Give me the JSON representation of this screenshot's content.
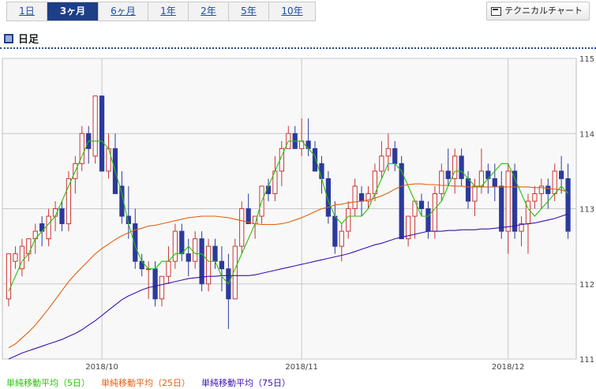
{
  "tabs": [
    {
      "label": "1日",
      "active": false
    },
    {
      "label": "3ヶ月",
      "active": true
    },
    {
      "label": "6ヶ月",
      "active": false
    },
    {
      "label": "1年",
      "active": false
    },
    {
      "label": "2年",
      "active": false
    },
    {
      "label": "5年",
      "active": false
    },
    {
      "label": "10年",
      "active": false
    }
  ],
  "technical_button": {
    "label": "テクニカルチャート",
    "icon": "chart-window-icon"
  },
  "section_title": "日足",
  "legend": [
    {
      "label": "単純移動平均（5日）",
      "color": "#2ac00a"
    },
    {
      "label": "単純移動平均（25日）",
      "color": "#e06010"
    },
    {
      "label": "単純移動平均（75日）",
      "color": "#3a10b0"
    }
  ],
  "colors": {
    "up": "#cc3333",
    "down": "#2c3a9c",
    "grid": "#c8c8c8",
    "plot_bg": "#f8f8f8"
  },
  "chart_data": {
    "type": "candlestick",
    "ylim": [
      111,
      115
    ],
    "yticks": [
      111,
      112,
      113,
      114,
      115
    ],
    "xticks": [
      {
        "label": "2018/10",
        "index": 14
      },
      {
        "label": "2018/11",
        "index": 44
      },
      {
        "label": "2018/12",
        "index": 75
      }
    ],
    "candles": [
      [
        111.8,
        112.4,
        111.7,
        112.4
      ],
      [
        112.3,
        112.5,
        112.2,
        112.4
      ],
      [
        112.2,
        112.6,
        112.1,
        112.5
      ],
      [
        112.4,
        112.6,
        112.3,
        112.6
      ],
      [
        112.6,
        112.8,
        112.4,
        112.7
      ],
      [
        112.8,
        112.9,
        112.5,
        112.7
      ],
      [
        112.6,
        113.0,
        112.5,
        112.9
      ],
      [
        112.9,
        113.1,
        112.7,
        113.0
      ],
      [
        113.0,
        113.1,
        112.7,
        112.8
      ],
      [
        112.8,
        113.5,
        112.7,
        113.4
      ],
      [
        113.4,
        113.7,
        113.2,
        113.6
      ],
      [
        113.6,
        114.1,
        113.5,
        114.0
      ],
      [
        114.0,
        114.1,
        113.6,
        113.8
      ],
      [
        113.7,
        114.5,
        113.6,
        114.5
      ],
      [
        114.5,
        114.5,
        113.5,
        113.5
      ],
      [
        113.5,
        114.0,
        113.4,
        113.8
      ],
      [
        113.8,
        114.0,
        113.2,
        113.2
      ],
      [
        113.3,
        113.5,
        112.8,
        112.9
      ],
      [
        112.9,
        113.3,
        112.6,
        112.8
      ],
      [
        112.8,
        113.0,
        112.2,
        112.3
      ],
      [
        112.3,
        112.4,
        112.1,
        112.2
      ],
      [
        112.2,
        112.3,
        111.8,
        112.2
      ],
      [
        112.2,
        112.3,
        111.7,
        111.8
      ],
      [
        111.8,
        112.1,
        111.7,
        112.1
      ],
      [
        112.1,
        112.5,
        112.0,
        112.3
      ],
      [
        112.3,
        112.8,
        112.2,
        112.7
      ],
      [
        112.7,
        112.8,
        112.3,
        112.4
      ],
      [
        112.4,
        112.6,
        112.1,
        112.3
      ],
      [
        112.3,
        112.7,
        112.2,
        112.6
      ],
      [
        112.6,
        112.7,
        111.9,
        112.0
      ],
      [
        112.0,
        112.6,
        111.9,
        112.5
      ],
      [
        112.5,
        112.6,
        112.2,
        112.3
      ],
      [
        112.3,
        112.5,
        111.9,
        112.2
      ],
      [
        112.2,
        112.4,
        111.4,
        111.8
      ],
      [
        111.8,
        112.6,
        111.8,
        112.5
      ],
      [
        112.5,
        113.1,
        112.4,
        113.0
      ],
      [
        113.0,
        113.2,
        112.8,
        112.8
      ],
      [
        112.8,
        112.9,
        112.6,
        112.9
      ],
      [
        112.9,
        113.3,
        112.8,
        113.3
      ],
      [
        113.3,
        113.4,
        113.1,
        113.2
      ],
      [
        113.2,
        113.7,
        113.1,
        113.5
      ],
      [
        113.5,
        113.9,
        113.3,
        113.8
      ],
      [
        113.8,
        114.1,
        113.8,
        114.0
      ],
      [
        114.0,
        114.1,
        113.8,
        113.8
      ],
      [
        113.8,
        114.2,
        113.7,
        113.9
      ],
      [
        113.9,
        114.2,
        113.7,
        113.8
      ],
      [
        113.8,
        113.9,
        113.5,
        113.5
      ],
      [
        113.6,
        113.7,
        113.2,
        113.4
      ],
      [
        113.4,
        113.5,
        112.8,
        112.9
      ],
      [
        112.9,
        113.1,
        112.4,
        112.5
      ],
      [
        112.5,
        112.8,
        112.3,
        112.7
      ],
      [
        112.7,
        113.1,
        112.6,
        113.0
      ],
      [
        113.0,
        113.4,
        112.9,
        113.3
      ],
      [
        113.2,
        113.3,
        112.9,
        113.1
      ],
      [
        113.1,
        113.3,
        113.0,
        113.2
      ],
      [
        113.2,
        113.6,
        113.1,
        113.5
      ],
      [
        113.5,
        113.9,
        113.4,
        113.7
      ],
      [
        113.7,
        114.0,
        113.5,
        113.8
      ],
      [
        113.8,
        113.9,
        113.5,
        113.6
      ],
      [
        113.6,
        113.7,
        112.6,
        112.6
      ],
      [
        112.6,
        112.9,
        112.5,
        112.9
      ],
      [
        112.9,
        113.1,
        112.6,
        113.1
      ],
      [
        113.1,
        113.2,
        112.9,
        113.0
      ],
      [
        113.0,
        113.1,
        112.6,
        112.7
      ],
      [
        112.7,
        113.3,
        112.6,
        113.2
      ],
      [
        113.2,
        113.6,
        113.1,
        113.5
      ],
      [
        113.5,
        113.8,
        113.3,
        113.4
      ],
      [
        113.4,
        113.8,
        113.2,
        113.7
      ],
      [
        113.7,
        113.8,
        113.3,
        113.4
      ],
      [
        113.4,
        113.5,
        113.0,
        113.1
      ],
      [
        113.1,
        113.4,
        112.9,
        113.3
      ],
      [
        113.3,
        113.8,
        113.2,
        113.5
      ],
      [
        113.5,
        113.6,
        113.2,
        113.4
      ],
      [
        113.4,
        113.6,
        113.1,
        113.3
      ],
      [
        113.3,
        113.5,
        112.6,
        112.7
      ],
      [
        112.7,
        113.6,
        112.4,
        113.5
      ],
      [
        113.5,
        113.6,
        112.6,
        112.7
      ],
      [
        112.7,
        112.9,
        112.5,
        112.8
      ],
      [
        112.8,
        113.2,
        112.4,
        113.1
      ],
      [
        113.1,
        113.3,
        113.0,
        113.2
      ],
      [
        113.2,
        113.4,
        113.0,
        113.3
      ],
      [
        113.3,
        113.4,
        113.0,
        113.2
      ],
      [
        113.2,
        113.6,
        113.1,
        113.5
      ],
      [
        113.5,
        113.7,
        113.2,
        113.4
      ],
      [
        113.4,
        113.6,
        112.6,
        112.7
      ]
    ],
    "ma5": [
      111.9,
      112.1,
      112.3,
      112.4,
      112.6,
      112.7,
      112.8,
      112.9,
      113.1,
      113.3,
      113.5,
      113.7,
      113.9,
      113.9,
      113.9,
      113.8,
      113.5,
      113.2,
      112.8,
      112.5,
      112.3,
      112.2,
      112.2,
      112.3,
      112.3,
      112.4,
      112.4,
      112.5,
      112.4,
      112.4,
      112.3,
      112.3,
      112.1,
      112.0,
      112.2,
      112.4,
      112.6,
      112.8,
      113.1,
      113.3,
      113.5,
      113.7,
      113.9,
      113.9,
      113.9,
      113.8,
      113.7,
      113.4,
      113.1,
      112.9,
      112.8,
      112.9,
      112.9,
      112.9,
      113.0,
      113.2,
      113.4,
      113.6,
      113.6,
      113.5,
      113.3,
      113.1,
      112.9,
      112.9,
      113.0,
      113.1,
      113.3,
      113.5,
      113.5,
      113.4,
      113.3,
      113.3,
      113.4,
      113.5,
      113.6,
      113.6,
      113.4,
      113.2,
      113.0,
      112.9,
      113.0,
      113.1,
      113.2,
      113.3,
      113.2
    ],
    "ma25": [
      111.15,
      111.2,
      111.28,
      111.36,
      111.45,
      111.56,
      111.67,
      111.79,
      111.91,
      112.03,
      112.13,
      112.22,
      112.31,
      112.4,
      112.47,
      112.53,
      112.59,
      112.64,
      112.68,
      112.72,
      112.74,
      112.77,
      112.78,
      112.8,
      112.82,
      112.84,
      112.86,
      112.88,
      112.89,
      112.9,
      112.9,
      112.9,
      112.89,
      112.88,
      112.86,
      112.84,
      112.82,
      112.8,
      112.79,
      112.79,
      112.79,
      112.8,
      112.82,
      112.85,
      112.88,
      112.92,
      112.96,
      113.0,
      113.02,
      113.05,
      113.06,
      113.08,
      113.09,
      113.1,
      113.12,
      113.14,
      113.17,
      113.21,
      113.26,
      113.3,
      113.32,
      113.33,
      113.33,
      113.32,
      113.32,
      113.31,
      113.31,
      113.3,
      113.3,
      113.29,
      113.29,
      113.29,
      113.29,
      113.29,
      113.29,
      113.29,
      113.29,
      113.29,
      113.29,
      113.28,
      113.28,
      113.27,
      113.26,
      113.25,
      113.22
    ],
    "ma75": [
      111.0,
      111.04,
      111.08,
      111.11,
      111.14,
      111.17,
      111.2,
      111.23,
      111.26,
      111.3,
      111.34,
      111.39,
      111.45,
      111.51,
      111.58,
      111.65,
      111.72,
      111.79,
      111.84,
      111.88,
      111.92,
      111.95,
      111.97,
      111.99,
      112.01,
      112.03,
      112.05,
      112.07,
      112.08,
      112.09,
      112.1,
      112.1,
      112.11,
      112.11,
      112.11,
      112.11,
      112.11,
      112.12,
      112.14,
      112.16,
      112.18,
      112.2,
      112.22,
      112.24,
      112.26,
      112.28,
      112.3,
      112.32,
      112.34,
      112.36,
      112.38,
      112.4,
      112.43,
      112.46,
      112.49,
      112.52,
      112.54,
      112.57,
      112.6,
      112.62,
      112.64,
      112.66,
      112.68,
      112.7,
      112.7,
      112.7,
      112.71,
      112.71,
      112.72,
      112.72,
      112.72,
      112.73,
      112.73,
      112.74,
      112.75,
      112.76,
      112.77,
      112.79,
      112.8,
      112.81,
      112.83,
      112.85,
      112.87,
      112.9,
      112.93
    ]
  }
}
